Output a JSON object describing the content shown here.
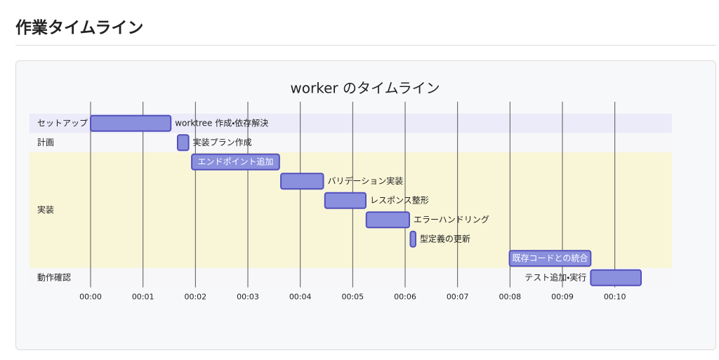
{
  "header": {
    "title": "作業タイムライン"
  },
  "chart_data": {
    "type": "gantt",
    "title": "worker のタイムライン",
    "xlim": [
      0,
      10.5
    ],
    "xticks": [
      {
        "value": 0,
        "label": "00:00"
      },
      {
        "value": 1,
        "label": "00:01"
      },
      {
        "value": 2,
        "label": "00:02"
      },
      {
        "value": 3,
        "label": "00:03"
      },
      {
        "value": 4,
        "label": "00:04"
      },
      {
        "value": 5,
        "label": "00:05"
      },
      {
        "value": 6,
        "label": "00:06"
      },
      {
        "value": 7,
        "label": "00:07"
      },
      {
        "value": 8,
        "label": "00:08"
      },
      {
        "value": 9,
        "label": "00:09"
      },
      {
        "value": 10,
        "label": "00:10"
      }
    ],
    "grid": true,
    "color": "#8a90dd",
    "sections": [
      {
        "name": "セットアップ",
        "color": "#ebebfa",
        "tasks": [
          {
            "name": "worktree 作成・依存解決",
            "start": 0,
            "end": 1.53
          }
        ]
      },
      {
        "name": "計画",
        "color": "#f7f7fa",
        "tasks": [
          {
            "name": "実装プラン作成",
            "start": 1.66,
            "end": 1.87
          }
        ]
      },
      {
        "name": "実装",
        "color": "#f9f6d8",
        "tasks": [
          {
            "name": "エンドポイント追加",
            "start": 1.93,
            "end": 3.6
          },
          {
            "name": "バリデーション実装",
            "start": 3.63,
            "end": 4.44
          },
          {
            "name": "レスポンス整形",
            "start": 4.47,
            "end": 5.25
          },
          {
            "name": "エラーハンドリング",
            "start": 5.26,
            "end": 6.08
          },
          {
            "name": "型定義の更新",
            "start": 6.1,
            "end": 6.2
          },
          {
            "name": "既存コードとの統合",
            "start": 7.99,
            "end": 9.54
          }
        ]
      },
      {
        "name": "動作確認",
        "color": "#f7f7fa",
        "tasks": [
          {
            "name": "テスト追加・実行",
            "start": 9.54,
            "end": 10.5
          }
        ]
      }
    ]
  }
}
